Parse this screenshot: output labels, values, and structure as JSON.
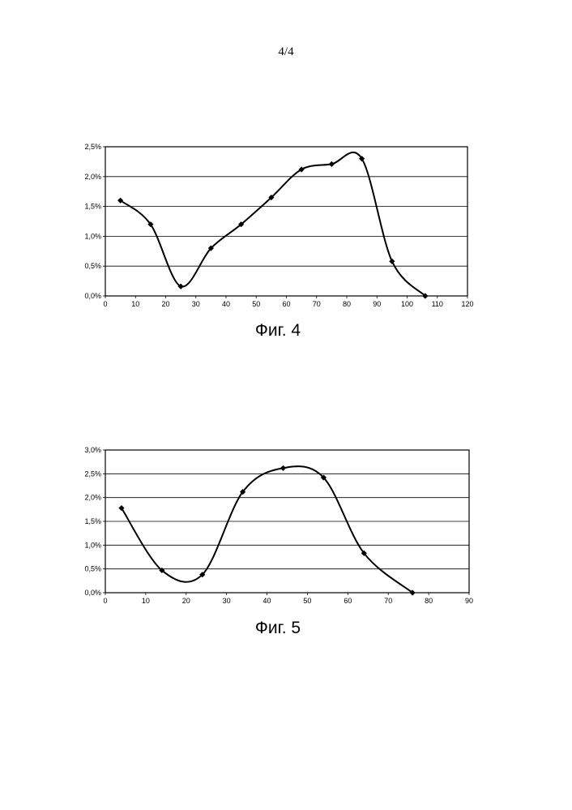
{
  "page_number": "4/4",
  "chart_data": [
    {
      "type": "line",
      "caption": "Фиг. 4",
      "x": [
        5,
        15,
        25,
        35,
        45,
        55,
        65,
        75,
        85,
        95,
        106
      ],
      "series": [
        {
          "values": [
            1.6,
            1.2,
            0.16,
            0.8,
            1.2,
            1.65,
            2.12,
            2.21,
            2.3,
            0.58,
            0.0
          ]
        }
      ],
      "xlim": [
        0,
        120
      ],
      "ylim": [
        0,
        2.5
      ],
      "x_ticks": [
        "0",
        "10",
        "20",
        "30",
        "40",
        "50",
        "60",
        "70",
        "80",
        "90",
        "100",
        "110",
        "120"
      ],
      "y_ticks": [
        "0,0%",
        "0,5%",
        "1,0%",
        "1,5%",
        "2,0%",
        "2,5%"
      ],
      "grid": "horizontal",
      "marker": "diamond",
      "smooth": true,
      "legend": "none"
    },
    {
      "type": "line",
      "caption": "Фиг. 5",
      "x": [
        4,
        14,
        24,
        34,
        44,
        54,
        64,
        76
      ],
      "series": [
        {
          "values": [
            1.78,
            0.47,
            0.38,
            2.12,
            2.62,
            2.42,
            0.83,
            0.0
          ]
        }
      ],
      "xlim": [
        0,
        90
      ],
      "ylim": [
        0,
        3.0
      ],
      "x_ticks": [
        "0",
        "10",
        "20",
        "30",
        "40",
        "50",
        "60",
        "70",
        "80",
        "90"
      ],
      "y_ticks": [
        "0,0%",
        "0,5%",
        "1,0%",
        "1,5%",
        "2,0%",
        "2,5%",
        "3,0%"
      ],
      "grid": "horizontal",
      "marker": "diamond",
      "smooth": true,
      "legend": "none"
    }
  ]
}
